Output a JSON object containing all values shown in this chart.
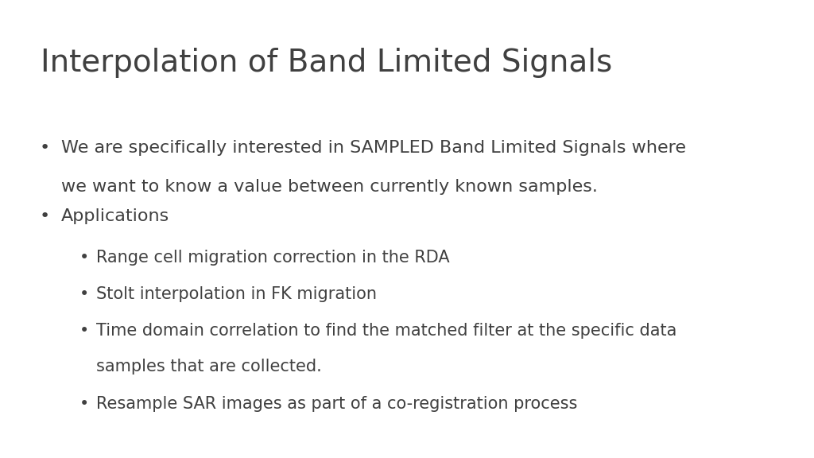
{
  "title": "Interpolation of Band Limited Signals",
  "background_color": "#ffffff",
  "title_color": "#404040",
  "text_color": "#404040",
  "title_fontsize": 28,
  "body_fontsize": 16,
  "sub_fontsize": 15,
  "bullet1_line1": "We are specifically interested in SAMPLED Band Limited Signals where",
  "bullet1_line2": "we want to know a value between currently known samples.",
  "bullet2_header": "Applications",
  "sub_bullets": [
    "Range cell migration correction in the RDA",
    "Stolt interpolation in FK migration",
    "Time domain correlation to find the matched filter at the specific data",
    "samples that are collected.",
    "Resample SAR images as part of a co-registration process"
  ],
  "sub_bullet_flags": [
    true,
    true,
    true,
    false,
    true
  ]
}
